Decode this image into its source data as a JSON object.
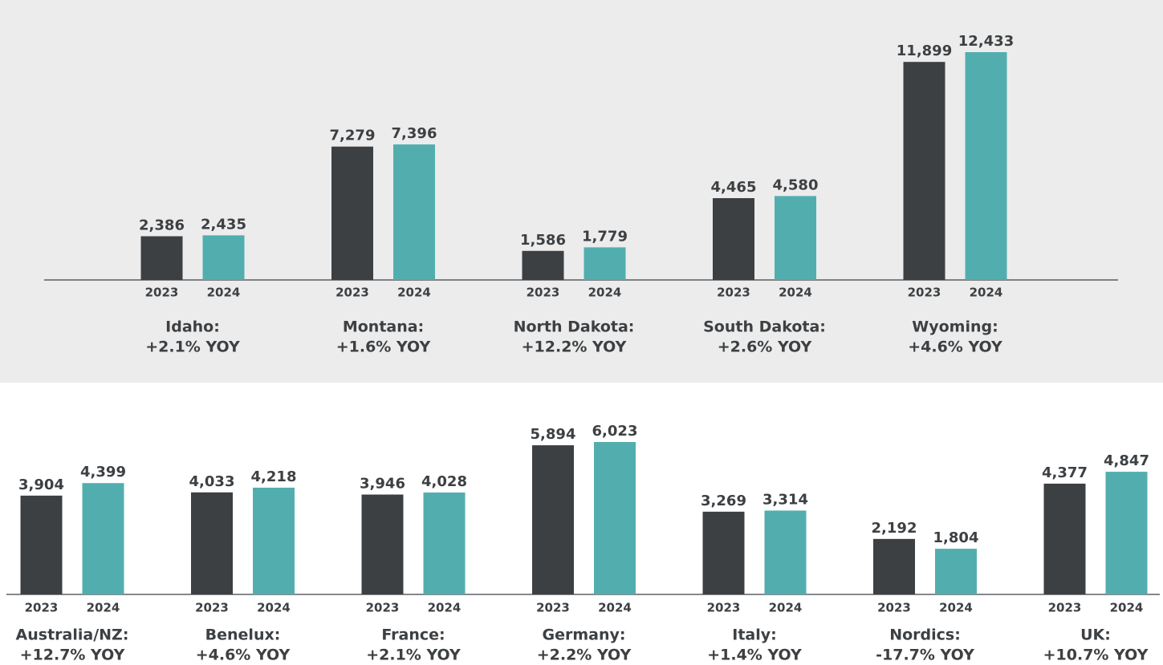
{
  "chart_data": [
    {
      "type": "bar",
      "categories": [
        "Idaho:",
        "Montana:",
        "North Dakota:",
        "South Dakota:",
        "Wyoming:"
      ],
      "category_notes": [
        "+2.1% YOY",
        "+1.6% YOY",
        "+12.2% YOY",
        "+2.6% YOY",
        "+4.6% YOY"
      ],
      "series": [
        {
          "name": "2023",
          "color": "#3d4043",
          "values": [
            2386,
            7279,
            1586,
            4465,
            11899
          ],
          "value_labels": [
            "2,386",
            "7,279",
            "1,586",
            "4,465",
            "11,899"
          ]
        },
        {
          "name": "2024",
          "color": "#52aeae",
          "values": [
            2435,
            7396,
            1779,
            4580,
            12433
          ],
          "value_labels": [
            "2,435",
            "7,396",
            "1,779",
            "4,580",
            "12,433"
          ]
        }
      ]
    },
    {
      "type": "bar",
      "categories": [
        "Australia/NZ:",
        "Benelux:",
        "France:",
        "Germany:",
        "Italy:",
        "Nordics:",
        "UK:"
      ],
      "category_notes": [
        "+12.7% YOY",
        "+4.6% YOY",
        "+2.1% YOY",
        "+2.2% YOY",
        "+1.4% YOY",
        "-17.7% YOY",
        "+10.7% YOY"
      ],
      "series": [
        {
          "name": "2023",
          "color": "#3d4043",
          "values": [
            3904,
            4033,
            3946,
            5894,
            3269,
            2192,
            4377
          ],
          "value_labels": [
            "3,904",
            "4,033",
            "3,946",
            "5,894",
            "3,269",
            "2,192",
            "4,377"
          ]
        },
        {
          "name": "2024",
          "color": "#52aeae",
          "values": [
            4399,
            4218,
            4028,
            6023,
            3314,
            1804,
            4847
          ],
          "value_labels": [
            "4,399",
            "4,218",
            "4,028",
            "6,023",
            "3,314",
            "1,804",
            "4,847"
          ]
        }
      ]
    }
  ]
}
